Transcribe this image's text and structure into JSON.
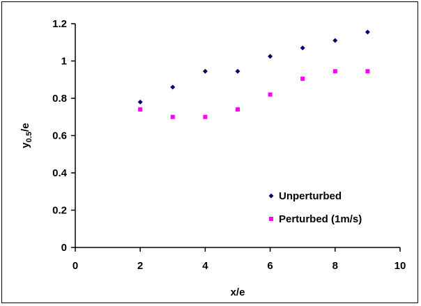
{
  "chart_data": {
    "type": "scatter",
    "title": "",
    "xlabel": "x/e",
    "ylabel_main": "y",
    "ylabel_sub": "0.5",
    "ylabel_tail": "/e",
    "xlim": [
      0,
      10
    ],
    "ylim": [
      0,
      1.2
    ],
    "xticks": [
      "0",
      "2",
      "4",
      "6",
      "8",
      "10"
    ],
    "xtick_values": [
      0,
      2,
      4,
      6,
      8,
      10
    ],
    "yticks": [
      "0",
      "0.2",
      "0.4",
      "0.6",
      "0.8",
      "1",
      "1.2"
    ],
    "ytick_values": [
      0,
      0.2,
      0.4,
      0.6,
      0.8,
      1.0,
      1.2
    ],
    "grid": false,
    "legend_position": "lower-right",
    "series": [
      {
        "name": "Unperturbed",
        "marker": "diamond",
        "color": "#000066",
        "x": [
          2,
          3,
          4,
          5,
          6,
          7,
          8,
          9
        ],
        "y": [
          0.78,
          0.86,
          0.945,
          0.945,
          1.025,
          1.07,
          1.11,
          1.155
        ]
      },
      {
        "name": "Perturbed (1m/s)",
        "marker": "square",
        "color": "#ff00ff",
        "x": [
          2,
          3,
          4,
          5,
          6,
          7,
          8,
          9
        ],
        "y": [
          0.74,
          0.7,
          0.7,
          0.74,
          0.82,
          0.905,
          0.945,
          0.945
        ]
      }
    ]
  }
}
